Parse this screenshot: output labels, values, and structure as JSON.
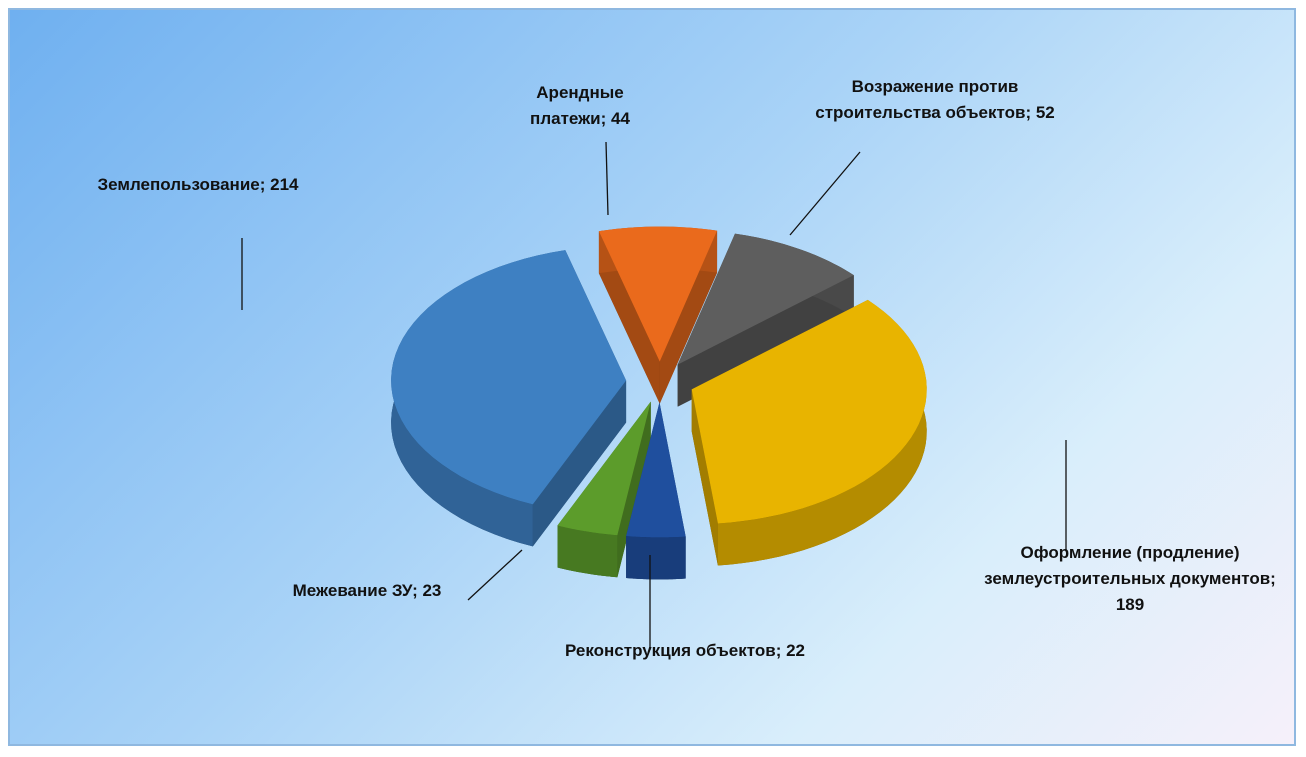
{
  "chart_data": {
    "type": "pie",
    "categories": [
      "Арендные платежи",
      "Возражение против строительства объектов",
      "Оформление (продление) землеустроительных документов",
      "Реконструкция объектов",
      "Межевание ЗУ",
      "Землепользование"
    ],
    "values": [
      44,
      52,
      189,
      22,
      23,
      214
    ],
    "value_labels": [
      "; 44",
      "; 52",
      "; 189",
      "; 22",
      "; 23",
      "; 214"
    ],
    "colors": [
      "#ea6a1c",
      "#5e5e5e",
      "#e8b400",
      "#1f4f9e",
      "#5c9c2b",
      "#3e80c2"
    ]
  }
}
